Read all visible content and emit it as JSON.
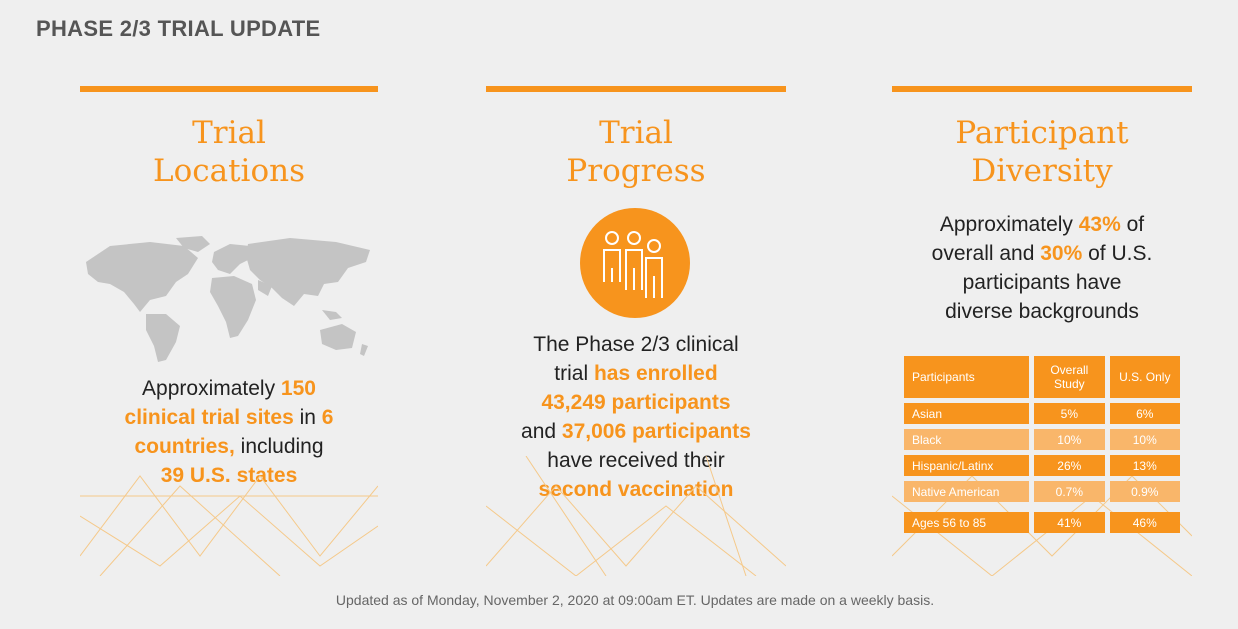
{
  "page_title": "PHASE 2/3 TRIAL UPDATE",
  "columns": {
    "locations": {
      "title_line1": "Trial",
      "title_line2": "Locations",
      "icon": "world-map-icon",
      "text": {
        "p1": "Approximately ",
        "h1": "150",
        "h2": "clinical trial sites",
        "p2": " in ",
        "h3": "6",
        "h4": "countries,",
        "p3": " including",
        "h5": "39 U.S. states"
      }
    },
    "progress": {
      "title_line1": "Trial",
      "title_line2": "Progress",
      "icon": "people-group-icon",
      "text": {
        "p1": "The Phase 2/3 clinical",
        "p2": "trial ",
        "h1": "has enrolled",
        "h2": "43,249 participants",
        "p3": "and ",
        "h3": "37,006 participants",
        "p4": "have received their",
        "h4": "second vaccination"
      }
    },
    "diversity": {
      "title_line1": "Participant",
      "title_line2": "Diversity",
      "text": {
        "p1": "Approximately ",
        "h1": "43%",
        "p2": " of",
        "p3": "overall and ",
        "h2": "30%",
        "p4": " of U.S.",
        "p5": "participants have",
        "p6": "diverse backgrounds"
      },
      "table": {
        "headers": [
          "Participants",
          "Overall Study",
          "U.S. Only"
        ],
        "rows": [
          [
            "Asian",
            "5%",
            "6%"
          ],
          [
            "Black",
            "10%",
            "10%"
          ],
          [
            "Hispanic/Latinx",
            "26%",
            "13%"
          ],
          [
            "Native American",
            "0.7%",
            "0.9%"
          ]
        ],
        "age_row": [
          "Ages 56 to 85",
          "41%",
          "46%"
        ]
      }
    }
  },
  "colors": {
    "accent": "#f7941d",
    "accent_light": "#f9b66a",
    "map_gray": "#c4c4c4"
  },
  "footer": "Updated as of Monday, November 2, 2020 at 09:00am ET. Updates are made on a weekly basis."
}
